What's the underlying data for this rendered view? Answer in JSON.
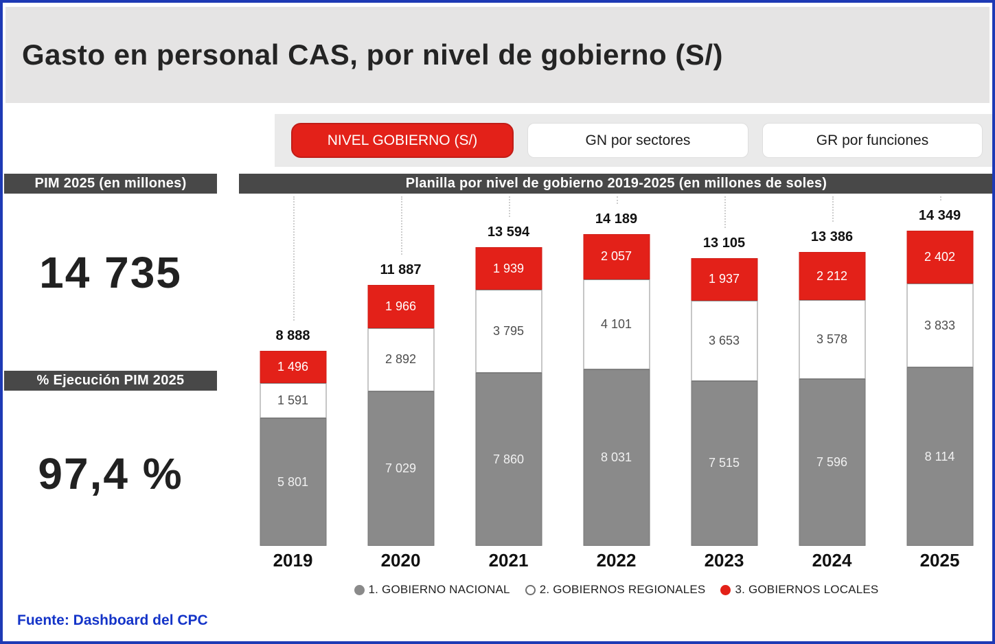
{
  "window": {
    "title": "Gasto en personal CAS, por nivel de gobierno (S/)"
  },
  "tabs": [
    {
      "label": "NIVEL GOBIERNO (S/)",
      "active": true
    },
    {
      "label": "GN por sectores",
      "active": false
    },
    {
      "label": "GR por funciones",
      "active": false
    }
  ],
  "kpis": [
    {
      "label": "PIM 2025 (en millones)",
      "value": "14 735"
    },
    {
      "label": "% Ejecución PIM 2025",
      "value": "97,4 %"
    }
  ],
  "footer": {
    "source": "Fuente: Dashboard del CPC"
  },
  "colors": {
    "accent_red": "#e32119",
    "bar_gray": "#8a8a8a",
    "dark_label_bar": "#484848",
    "title_panel_gray": "#e5e4e4",
    "tab_strip_gray": "#eaeaea",
    "border_blue": "#1e3ab5",
    "footer_blue": "#1434c8"
  },
  "chart_data": {
    "type": "bar",
    "stacked": true,
    "title": "Planilla por nivel de gobierno 2019-2025 (en millones de soles)",
    "xlabel": "",
    "ylabel": "millones de soles",
    "grid": false,
    "legend_position": "bottom",
    "categories": [
      "2019",
      "2020",
      "2021",
      "2022",
      "2023",
      "2024",
      "2025"
    ],
    "series": [
      {
        "name": "1. GOBIERNO NACIONAL",
        "color": "#8a8a8a",
        "border": "#767676",
        "label_color": "#f1f1f1",
        "marker_border": "#8a8a8a",
        "values": [
          5801,
          7029,
          7860,
          8031,
          7515,
          7596,
          8114
        ],
        "labels": [
          "5 801",
          "7 029",
          "7 860",
          "8 031",
          "7 515",
          "7 596",
          "8 114"
        ]
      },
      {
        "name": "2. GOBIERNOS REGIONALES",
        "color": "#ffffff",
        "border": "#8e8e8e",
        "label_color": "#4d4d4d",
        "marker_border": "#6f6f6f",
        "values": [
          1591,
          2892,
          3795,
          4101,
          3653,
          3578,
          3833
        ],
        "labels": [
          "1 591",
          "2 892",
          "3 795",
          "4 101",
          "3 653",
          "3 578",
          "3 833"
        ]
      },
      {
        "name": "3. GOBIERNOS LOCALES",
        "color": "#e32119",
        "border": "#cf1e18",
        "label_color": "#ffffff",
        "marker_border": "#e32119",
        "values": [
          1496,
          1966,
          1939,
          2057,
          1937,
          2212,
          2402
        ],
        "labels": [
          "1 496",
          "1 966",
          "1 939",
          "2 057",
          "1 937",
          "2 212",
          "2 402"
        ]
      }
    ],
    "totals": [
      8888,
      11887,
      13594,
      14189,
      13105,
      13386,
      14349
    ],
    "total_labels": [
      "8 888",
      "11 887",
      "13 594",
      "14 189",
      "13 105",
      "13 386",
      "14 349"
    ]
  }
}
